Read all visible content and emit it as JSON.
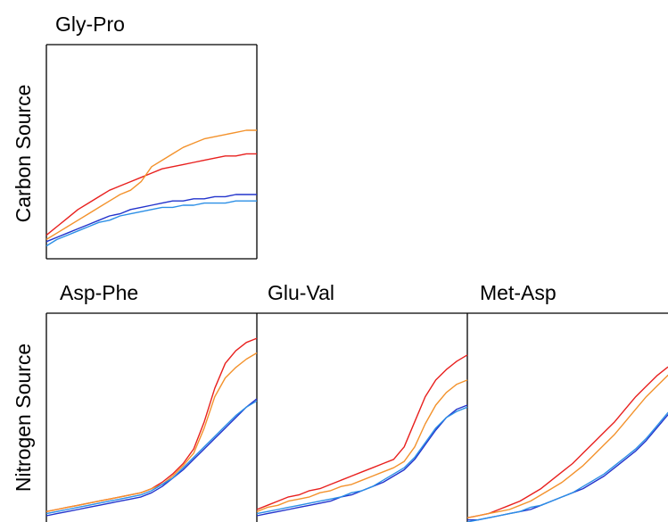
{
  "row_labels": [
    "Carbon Source",
    "Nitrogen Source"
  ],
  "colors": {
    "red": "#e8201e",
    "orange": "#f3922c",
    "dark_blue": "#2233cc",
    "light_blue": "#2b8fe6",
    "frame": "#000000"
  },
  "chart_data": [
    {
      "type": "line",
      "title": "Gly-Pro",
      "row": "Carbon Source",
      "x": [
        0,
        0.05,
        0.1,
        0.15,
        0.2,
        0.25,
        0.3,
        0.35,
        0.4,
        0.45,
        0.5,
        0.55,
        0.6,
        0.65,
        0.7,
        0.75,
        0.8,
        0.85,
        0.9,
        0.95,
        1
      ],
      "xlim": [
        0,
        1
      ],
      "ylim": [
        0,
        1
      ],
      "series": [
        {
          "color": "red",
          "values": [
            0.11,
            0.15,
            0.19,
            0.23,
            0.26,
            0.29,
            0.32,
            0.34,
            0.36,
            0.38,
            0.4,
            0.42,
            0.43,
            0.44,
            0.45,
            0.46,
            0.47,
            0.48,
            0.48,
            0.49,
            0.49
          ]
        },
        {
          "color": "orange",
          "values": [
            0.09,
            0.12,
            0.15,
            0.18,
            0.21,
            0.24,
            0.27,
            0.3,
            0.32,
            0.36,
            0.43,
            0.46,
            0.49,
            0.52,
            0.54,
            0.56,
            0.57,
            0.58,
            0.59,
            0.6,
            0.6
          ]
        },
        {
          "color": "dark_blue",
          "values": [
            0.08,
            0.1,
            0.12,
            0.14,
            0.16,
            0.18,
            0.2,
            0.21,
            0.23,
            0.24,
            0.25,
            0.26,
            0.27,
            0.27,
            0.28,
            0.28,
            0.29,
            0.29,
            0.3,
            0.3,
            0.3
          ]
        },
        {
          "color": "light_blue",
          "values": [
            0.06,
            0.09,
            0.11,
            0.13,
            0.15,
            0.17,
            0.18,
            0.2,
            0.21,
            0.22,
            0.23,
            0.24,
            0.24,
            0.25,
            0.25,
            0.26,
            0.26,
            0.26,
            0.27,
            0.27,
            0.27
          ]
        }
      ]
    },
    {
      "type": "line",
      "title": "Asp-Phe",
      "row": "Nitrogen Source",
      "x": [
        0,
        0.05,
        0.1,
        0.15,
        0.2,
        0.25,
        0.3,
        0.35,
        0.4,
        0.45,
        0.5,
        0.55,
        0.6,
        0.65,
        0.7,
        0.75,
        0.8,
        0.85,
        0.9,
        0.95,
        1
      ],
      "xlim": [
        0,
        1
      ],
      "ylim": [
        0,
        1
      ],
      "series": [
        {
          "color": "red",
          "values": [
            0.05,
            0.06,
            0.07,
            0.08,
            0.09,
            0.1,
            0.11,
            0.12,
            0.13,
            0.14,
            0.16,
            0.19,
            0.23,
            0.28,
            0.35,
            0.48,
            0.64,
            0.76,
            0.82,
            0.86,
            0.88
          ]
        },
        {
          "color": "orange",
          "values": [
            0.05,
            0.06,
            0.07,
            0.08,
            0.09,
            0.1,
            0.11,
            0.12,
            0.13,
            0.14,
            0.16,
            0.18,
            0.22,
            0.27,
            0.33,
            0.45,
            0.6,
            0.69,
            0.74,
            0.78,
            0.81
          ]
        },
        {
          "color": "dark_blue",
          "values": [
            0.03,
            0.04,
            0.05,
            0.06,
            0.07,
            0.08,
            0.09,
            0.1,
            0.11,
            0.12,
            0.14,
            0.17,
            0.21,
            0.25,
            0.3,
            0.35,
            0.4,
            0.45,
            0.5,
            0.55,
            0.59
          ]
        },
        {
          "color": "light_blue",
          "values": [
            0.04,
            0.05,
            0.06,
            0.07,
            0.08,
            0.09,
            0.1,
            0.11,
            0.12,
            0.13,
            0.15,
            0.18,
            0.21,
            0.26,
            0.31,
            0.36,
            0.41,
            0.46,
            0.51,
            0.55,
            0.58
          ]
        }
      ]
    },
    {
      "type": "line",
      "title": "Glu-Val",
      "row": "Nitrogen Source",
      "x": [
        0,
        0.05,
        0.1,
        0.15,
        0.2,
        0.25,
        0.3,
        0.35,
        0.4,
        0.45,
        0.5,
        0.55,
        0.6,
        0.65,
        0.7,
        0.75,
        0.8,
        0.85,
        0.9,
        0.95,
        1
      ],
      "xlim": [
        0,
        1
      ],
      "ylim": [
        0,
        1
      ],
      "series": [
        {
          "color": "red",
          "values": [
            0.06,
            0.08,
            0.1,
            0.12,
            0.13,
            0.15,
            0.16,
            0.18,
            0.2,
            0.22,
            0.24,
            0.26,
            0.28,
            0.3,
            0.36,
            0.48,
            0.6,
            0.68,
            0.73,
            0.77,
            0.8
          ]
        },
        {
          "color": "orange",
          "values": [
            0.05,
            0.07,
            0.08,
            0.1,
            0.11,
            0.12,
            0.14,
            0.15,
            0.17,
            0.18,
            0.2,
            0.22,
            0.24,
            0.26,
            0.29,
            0.36,
            0.47,
            0.56,
            0.62,
            0.66,
            0.68
          ]
        },
        {
          "color": "dark_blue",
          "values": [
            0.03,
            0.04,
            0.05,
            0.06,
            0.07,
            0.08,
            0.09,
            0.1,
            0.12,
            0.13,
            0.15,
            0.17,
            0.19,
            0.22,
            0.25,
            0.3,
            0.37,
            0.44,
            0.5,
            0.54,
            0.56
          ]
        },
        {
          "color": "light_blue",
          "values": [
            0.04,
            0.05,
            0.06,
            0.07,
            0.08,
            0.09,
            0.1,
            0.11,
            0.12,
            0.14,
            0.15,
            0.17,
            0.2,
            0.23,
            0.26,
            0.31,
            0.38,
            0.45,
            0.5,
            0.53,
            0.55
          ]
        }
      ]
    },
    {
      "type": "line",
      "title": "Met-Asp",
      "row": "Nitrogen Source",
      "x": [
        0,
        0.05,
        0.1,
        0.15,
        0.2,
        0.25,
        0.3,
        0.35,
        0.4,
        0.45,
        0.5,
        0.55,
        0.6,
        0.65,
        0.7,
        0.75,
        0.8,
        0.85,
        0.9,
        0.95,
        1
      ],
      "xlim": [
        0,
        1
      ],
      "ylim": [
        0,
        1
      ],
      "series": [
        {
          "color": "red",
          "values": [
            0.02,
            0.03,
            0.04,
            0.06,
            0.08,
            0.1,
            0.13,
            0.16,
            0.2,
            0.24,
            0.28,
            0.33,
            0.38,
            0.43,
            0.48,
            0.54,
            0.6,
            0.65,
            0.7,
            0.74,
            0.77
          ]
        },
        {
          "color": "orange",
          "values": [
            0.02,
            0.03,
            0.04,
            0.05,
            0.06,
            0.08,
            0.1,
            0.13,
            0.16,
            0.19,
            0.23,
            0.27,
            0.32,
            0.37,
            0.42,
            0.48,
            0.54,
            0.6,
            0.65,
            0.7,
            0.74
          ]
        },
        {
          "color": "dark_blue",
          "values": [
            0.01,
            0.01,
            0.02,
            0.03,
            0.04,
            0.05,
            0.06,
            0.08,
            0.1,
            0.12,
            0.14,
            0.16,
            0.19,
            0.22,
            0.26,
            0.3,
            0.34,
            0.39,
            0.45,
            0.51,
            0.56
          ]
        },
        {
          "color": "light_blue",
          "values": [
            0.0,
            0.01,
            0.02,
            0.03,
            0.04,
            0.05,
            0.07,
            0.08,
            0.1,
            0.12,
            0.14,
            0.17,
            0.2,
            0.23,
            0.27,
            0.31,
            0.35,
            0.4,
            0.46,
            0.52,
            0.57
          ]
        }
      ]
    }
  ]
}
